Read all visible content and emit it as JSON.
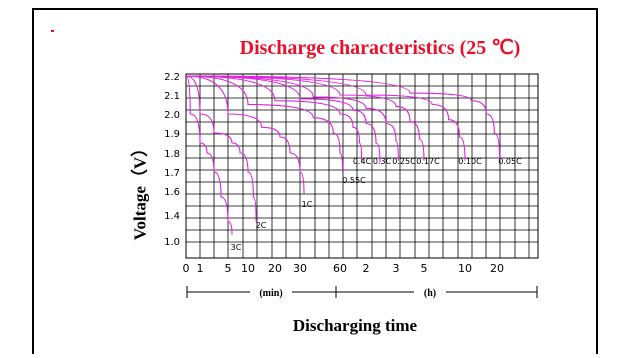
{
  "chart_data": {
    "type": "line",
    "title": "Discharge characteristics (25 ℃)",
    "xlabel": "Discharging time",
    "ylabel": "Voltage（V）",
    "x_unit_labels": [
      "(min)",
      "(h)"
    ],
    "x_ticks": [
      {
        "label": "0",
        "t_min": 0
      },
      {
        "label": "1",
        "t_min": 1
      },
      {
        "label": "5",
        "t_min": 5
      },
      {
        "label": "10",
        "t_min": 10
      },
      {
        "label": "20",
        "t_min": 20
      },
      {
        "label": "30",
        "t_min": 30
      },
      {
        "label": "60",
        "t_min": 60
      },
      {
        "label": "2",
        "t_min": 120
      },
      {
        "label": "3",
        "t_min": 180
      },
      {
        "label": "5",
        "t_min": 300
      },
      {
        "label": "10",
        "t_min": 600
      },
      {
        "label": "20",
        "t_min": 1200
      }
    ],
    "y_ticks": [
      "2.2",
      "2.1",
      "2.0",
      "1.9",
      "1.8",
      "1.7",
      "1.6",
      "1.4",
      "1.0"
    ],
    "y_tick_values": [
      2.2,
      2.1,
      2.0,
      1.9,
      1.8,
      1.7,
      1.6,
      1.4,
      1.0
    ],
    "grid": true,
    "series": [
      {
        "name": "3C",
        "color": "#e020e0",
        "points": [
          [
            0,
            2.2
          ],
          [
            0.3,
            2.0
          ],
          [
            1,
            1.85
          ],
          [
            2,
            1.8
          ],
          [
            3,
            1.7
          ],
          [
            4,
            1.55
          ],
          [
            5,
            1.3
          ],
          [
            6,
            1.1
          ]
        ]
      },
      {
        "name": "2C",
        "color": "#e020e0",
        "points": [
          [
            0,
            2.2
          ],
          [
            1,
            2.0
          ],
          [
            3,
            1.9
          ],
          [
            6,
            1.85
          ],
          [
            8,
            1.8
          ],
          [
            10,
            1.7
          ],
          [
            12,
            1.55
          ],
          [
            13,
            1.3
          ]
        ]
      },
      {
        "name": "1C",
        "color": "#e020e0",
        "points": [
          [
            0,
            2.2
          ],
          [
            5,
            2.0
          ],
          [
            15,
            1.93
          ],
          [
            22,
            1.88
          ],
          [
            26,
            1.8
          ],
          [
            30,
            1.7
          ],
          [
            33,
            1.58
          ]
        ]
      },
      {
        "name": "0.55C",
        "color": "#e020e0",
        "points": [
          [
            0,
            2.2
          ],
          [
            10,
            2.05
          ],
          [
            40,
            1.98
          ],
          [
            55,
            1.9
          ],
          [
            60,
            1.8
          ],
          [
            66,
            1.7
          ]
        ]
      },
      {
        "name": "0.4C",
        "color": "#e020e0",
        "points": [
          [
            0,
            2.2
          ],
          [
            20,
            2.07
          ],
          [
            60,
            2.0
          ],
          [
            90,
            1.93
          ],
          [
            105,
            1.85
          ],
          [
            110,
            1.75
          ]
        ]
      },
      {
        "name": "0.3C",
        "color": "#e020e0",
        "points": [
          [
            0,
            2.2
          ],
          [
            30,
            2.08
          ],
          [
            90,
            2.02
          ],
          [
            120,
            1.95
          ],
          [
            140,
            1.85
          ],
          [
            148,
            1.75
          ]
        ]
      },
      {
        "name": "0.25C",
        "color": "#e020e0",
        "points": [
          [
            0,
            2.2
          ],
          [
            40,
            2.09
          ],
          [
            120,
            2.03
          ],
          [
            160,
            1.95
          ],
          [
            180,
            1.86
          ],
          [
            190,
            1.76
          ]
        ]
      },
      {
        "name": "0.17C",
        "color": "#e020e0",
        "points": [
          [
            0,
            2.2
          ],
          [
            60,
            2.1
          ],
          [
            180,
            2.04
          ],
          [
            240,
            1.96
          ],
          [
            280,
            1.87
          ],
          [
            300,
            1.76
          ]
        ]
      },
      {
        "name": "0.10C",
        "color": "#e020e0",
        "points": [
          [
            0,
            2.2
          ],
          [
            120,
            2.1
          ],
          [
            360,
            2.05
          ],
          [
            480,
            1.97
          ],
          [
            560,
            1.88
          ],
          [
            600,
            1.76
          ]
        ]
      },
      {
        "name": "0.05C",
        "color": "#e020e0",
        "points": [
          [
            0,
            2.2
          ],
          [
            240,
            2.11
          ],
          [
            720,
            2.07
          ],
          [
            1000,
            2.0
          ],
          [
            1150,
            1.9
          ],
          [
            1250,
            1.76
          ]
        ]
      }
    ]
  }
}
